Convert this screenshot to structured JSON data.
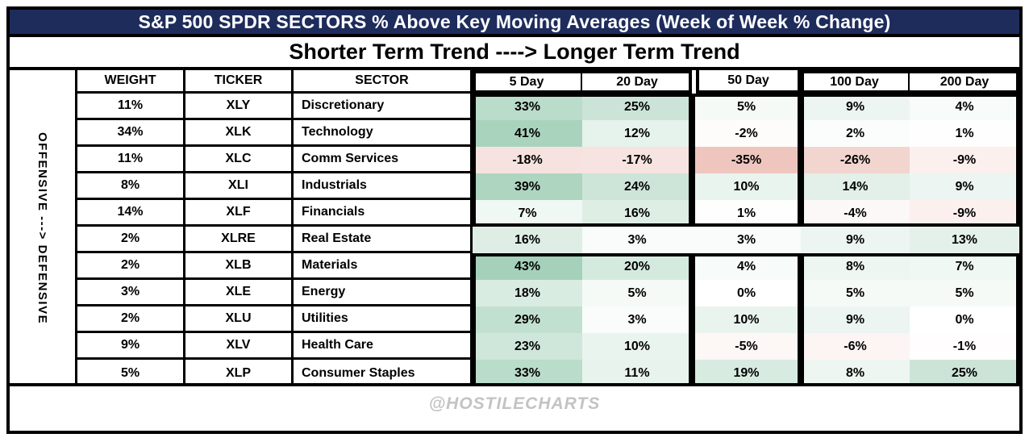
{
  "title": "S&P 500 SPDR SECTORS % Above Key Moving Averages (Week of Week % Change)",
  "subtitle": "Shorter Term Trend ----> Longer Term Trend",
  "left_axis_label": "OFFENSIVE ---> DEFENSIVE",
  "footer": "@HOSTILECHARTS",
  "chart_data": {
    "type": "heatmap",
    "columns": [
      "WEIGHT",
      "TICKER",
      "SECTOR",
      "5 Day",
      "20 Day",
      "50 Day",
      "100 Day",
      "200 Day"
    ],
    "value_unit": "%",
    "rows": [
      {
        "weight": "11%",
        "ticker": "XLY",
        "sector": "Discretionary",
        "values": [
          33,
          25,
          5,
          9,
          4
        ]
      },
      {
        "weight": "34%",
        "ticker": "XLK",
        "sector": "Technology",
        "values": [
          41,
          12,
          -2,
          2,
          1
        ]
      },
      {
        "weight": "11%",
        "ticker": "XLC",
        "sector": "Comm Services",
        "values": [
          -18,
          -17,
          -35,
          -26,
          -9
        ]
      },
      {
        "weight": "8%",
        "ticker": "XLI",
        "sector": "Industrials",
        "values": [
          39,
          24,
          10,
          14,
          9
        ]
      },
      {
        "weight": "14%",
        "ticker": "XLF",
        "sector": "Financials",
        "values": [
          7,
          16,
          1,
          -4,
          -9
        ]
      },
      {
        "weight": "2%",
        "ticker": "XLRE",
        "sector": "Real Estate",
        "values": [
          16,
          3,
          3,
          9,
          13
        ]
      },
      {
        "weight": "2%",
        "ticker": "XLB",
        "sector": "Materials",
        "values": [
          43,
          20,
          4,
          8,
          7
        ]
      },
      {
        "weight": "3%",
        "ticker": "XLE",
        "sector": "Energy",
        "values": [
          18,
          5,
          0,
          5,
          5
        ]
      },
      {
        "weight": "2%",
        "ticker": "XLU",
        "sector": "Utilities",
        "values": [
          29,
          3,
          10,
          9,
          0
        ]
      },
      {
        "weight": "9%",
        "ticker": "XLV",
        "sector": "Health Care",
        "values": [
          23,
          10,
          -5,
          -6,
          -1
        ]
      },
      {
        "weight": "5%",
        "ticker": "XLP",
        "sector": "Consumer Staples",
        "values": [
          33,
          11,
          19,
          8,
          25
        ]
      }
    ],
    "box_groups": {
      "row_ranges": [
        [
          0,
          4
        ],
        [
          6,
          10
        ]
      ],
      "column_groups": [
        [
          "5 Day",
          "20 Day"
        ],
        [
          "50 Day"
        ],
        [
          "100 Day",
          "200 Day"
        ]
      ]
    },
    "color_scale": {
      "positive_base": "#a5d1ba",
      "negative_base": "#eec6be",
      "positive_max": 43,
      "negative_max": 35,
      "zero_color": "#ffffff"
    },
    "colors": {
      "title_bg": "#1e2c5c",
      "title_text": "#ffffff",
      "border": "#000000",
      "footer_text": "#c3c3c3"
    },
    "legend_position": "none",
    "grid": "group-boxes"
  }
}
